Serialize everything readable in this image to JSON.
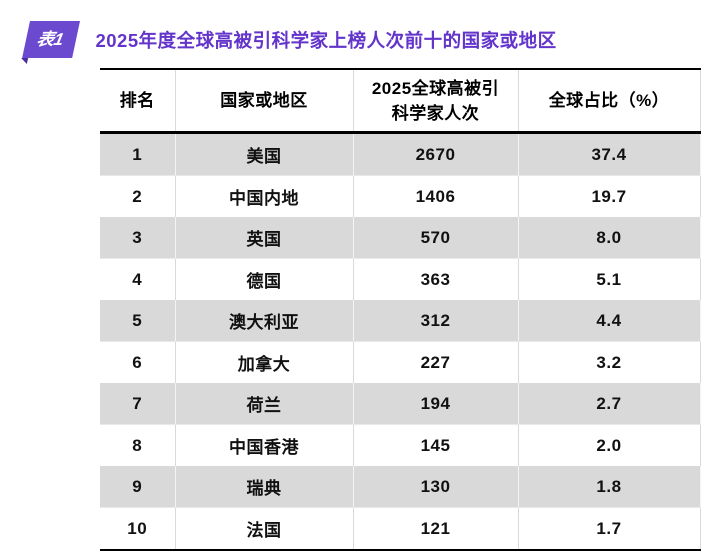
{
  "colors": {
    "badge_bg": "#6B4AD0",
    "badge_fold": "#4A2C9B",
    "title_text": "#6334CB",
    "row_alt_bg": "#D9D9D9",
    "border": "#000000"
  },
  "header": {
    "badge_label": "表1",
    "title": "2025年度全球高被引科学家上榜人次前十的国家或地区"
  },
  "table": {
    "col_headers": {
      "rank": "排名",
      "region": "国家或地区",
      "count_line1": "2025全球高被引",
      "count_line2": "科学家人次",
      "share": "全球占比（%）"
    },
    "rows": [
      {
        "rank": "1",
        "region": "美国",
        "count": "2670",
        "share": "37.4"
      },
      {
        "rank": "2",
        "region": "中国内地",
        "count": "1406",
        "share": "19.7"
      },
      {
        "rank": "3",
        "region": "英国",
        "count": "570",
        "share": "8.0"
      },
      {
        "rank": "4",
        "region": "德国",
        "count": "363",
        "share": "5.1"
      },
      {
        "rank": "5",
        "region": "澳大利亚",
        "count": "312",
        "share": "4.4"
      },
      {
        "rank": "6",
        "region": "加拿大",
        "count": "227",
        "share": "3.2"
      },
      {
        "rank": "7",
        "region": "荷兰",
        "count": "194",
        "share": "2.7"
      },
      {
        "rank": "8",
        "region": "中国香港",
        "count": "145",
        "share": "2.0"
      },
      {
        "rank": "9",
        "region": "瑞典",
        "count": "130",
        "share": "1.8"
      },
      {
        "rank": "10",
        "region": "法国",
        "count": "121",
        "share": "1.7"
      }
    ]
  },
  "chart_data": {
    "type": "table",
    "title": "2025年度全球高被引科学家上榜人次前十的国家或地区",
    "columns": [
      "排名",
      "国家或地区",
      "2025全球高被引科学家人次",
      "全球占比（%）"
    ],
    "categories": [
      "美国",
      "中国内地",
      "英国",
      "德国",
      "澳大利亚",
      "加拿大",
      "荷兰",
      "中国香港",
      "瑞典",
      "法国"
    ],
    "series": [
      {
        "name": "2025全球高被引科学家人次",
        "values": [
          2670,
          1406,
          570,
          363,
          312,
          227,
          194,
          145,
          130,
          121
        ]
      },
      {
        "name": "全球占比（%）",
        "values": [
          37.4,
          19.7,
          8.0,
          5.1,
          4.4,
          3.2,
          2.7,
          2.0,
          1.8,
          1.7
        ]
      }
    ],
    "layout": {
      "striped_rows": true,
      "stripe_color": "#D9D9D9",
      "header_border": "thick-black"
    }
  }
}
